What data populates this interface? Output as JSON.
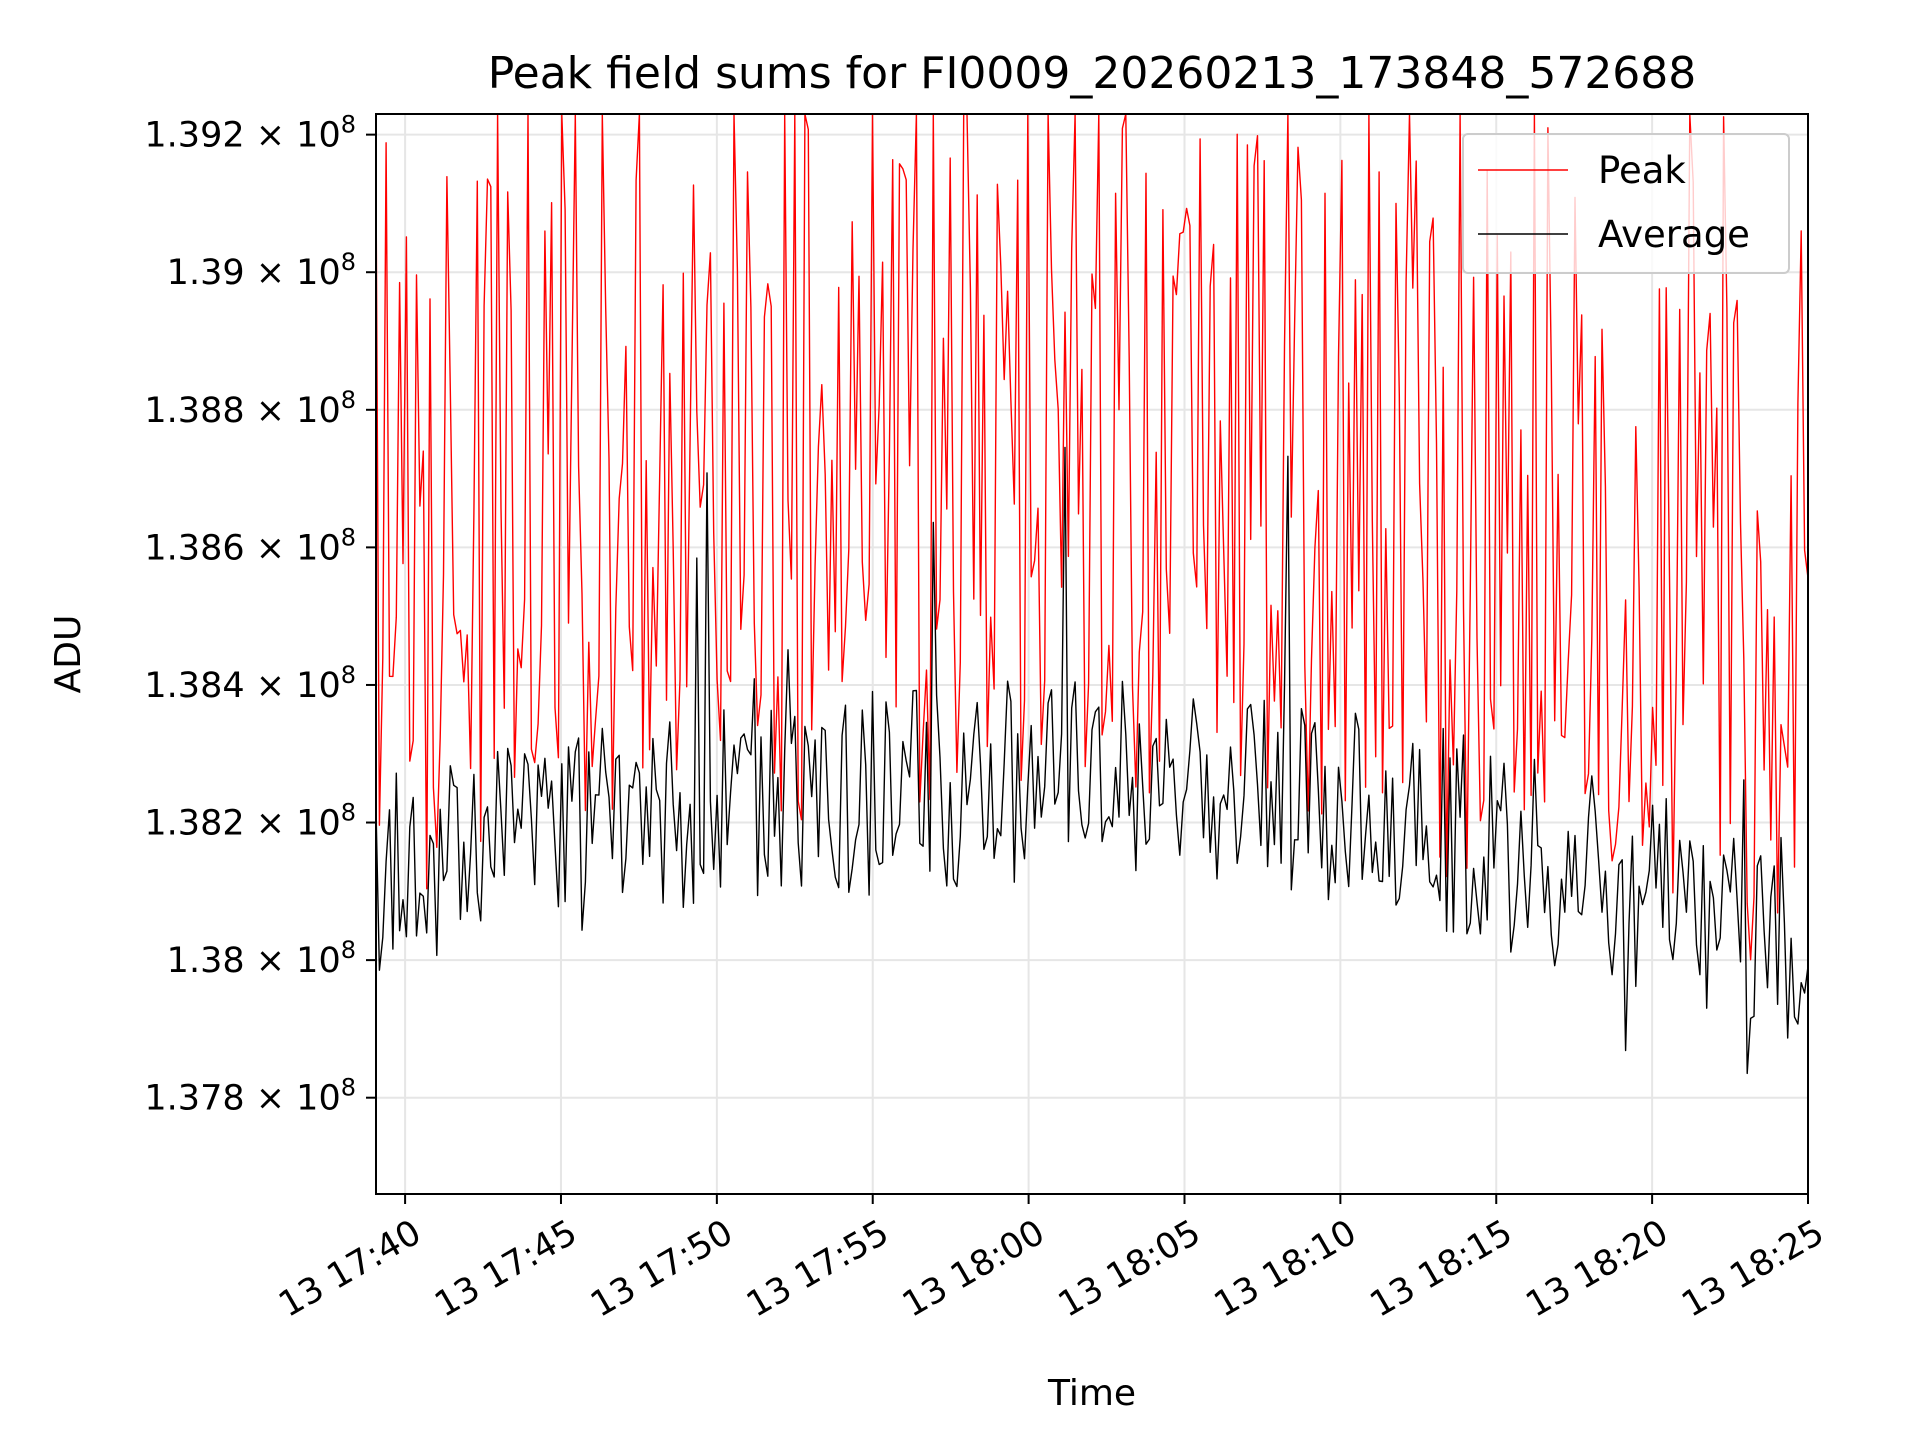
{
  "chart_data": {
    "type": "line",
    "title": "Peak field sums for FI0009_20260213_173848_572688",
    "xlabel": "Time",
    "ylabel": "ADU",
    "x_tick_labels": [
      "13 17:40",
      "13 17:45",
      "13 17:50",
      "13 17:55",
      "13 18:00",
      "13 18:05",
      "13 18:10",
      "13 18:15",
      "13 18:20",
      "13 18:25"
    ],
    "y_tick_labels": [
      {
        "mantissa": "1.378",
        "exponent": "8",
        "value": 137800000
      },
      {
        "mantissa": "1.38",
        "exponent": "8",
        "value": 138000000
      },
      {
        "mantissa": "1.382",
        "exponent": "8",
        "value": 138200000
      },
      {
        "mantissa": "1.384",
        "exponent": "8",
        "value": 138400000
      },
      {
        "mantissa": "1.386",
        "exponent": "8",
        "value": 138600000
      },
      {
        "mantissa": "1.388",
        "exponent": "8",
        "value": 138800000
      },
      {
        "mantissa": "1.39",
        "exponent": "8",
        "value": 139000000
      },
      {
        "mantissa": "1.392",
        "exponent": "8",
        "value": 139200000
      }
    ],
    "xlim": [
      "2026-02-13 17:39:04",
      "2026-02-13 18:25:00"
    ],
    "ylim": [
      137660000,
      139230000
    ],
    "grid": true,
    "legend_position": "upper right",
    "x_start": "2026-02-13 17:39:04",
    "x_step_seconds": 6.5,
    "series": [
      {
        "name": "Peak",
        "color": "#ff0000"
      },
      {
        "name": "Average",
        "color": "#000000"
      }
    ]
  }
}
